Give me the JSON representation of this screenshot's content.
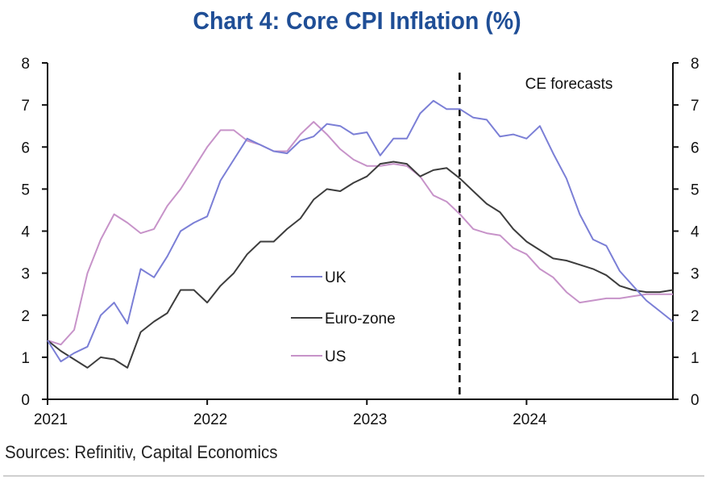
{
  "chart_data": {
    "type": "line",
    "title": "Chart 4: Core CPI Inflation (%)",
    "xlabel": "",
    "ylabel": "",
    "ylim": [
      0,
      8
    ],
    "yticks": [
      0,
      1,
      2,
      3,
      4,
      5,
      6,
      7,
      8
    ],
    "y_right_ticks": [
      0,
      1,
      2,
      3,
      4,
      5,
      6,
      7,
      8
    ],
    "x_tick_labels": [
      "2021",
      "2022",
      "2023",
      "2024"
    ],
    "x_start": "2021-01",
    "x_end": "2024-12",
    "frequency": "monthly",
    "grid": false,
    "legend_position": "center",
    "forecast_marker": {
      "month_index": 31,
      "label": "CE forecasts",
      "style": "dashed"
    },
    "series": [
      {
        "name": "UK",
        "color": "#7b7fd6",
        "values": [
          1.4,
          0.9,
          1.1,
          1.25,
          2.0,
          2.3,
          1.8,
          3.1,
          2.9,
          3.4,
          4.0,
          4.2,
          4.35,
          5.2,
          5.7,
          6.2,
          6.05,
          5.9,
          5.85,
          6.15,
          6.25,
          6.55,
          6.5,
          6.3,
          6.35,
          5.8,
          6.2,
          6.2,
          6.8,
          7.1,
          6.9,
          6.9,
          6.7,
          6.65,
          6.25,
          6.3,
          6.2,
          6.5,
          5.85,
          5.25,
          4.4,
          3.8,
          3.65,
          3.05,
          2.7,
          2.35,
          2.1,
          1.85
        ]
      },
      {
        "name": "Euro-zone",
        "color": "#3d3d3d",
        "values": [
          1.4,
          1.15,
          0.95,
          0.75,
          1.0,
          0.95,
          0.75,
          1.6,
          1.85,
          2.05,
          2.6,
          2.6,
          2.3,
          2.7,
          3.0,
          3.45,
          3.75,
          3.75,
          4.05,
          4.3,
          4.75,
          5.0,
          4.95,
          5.15,
          5.3,
          5.6,
          5.65,
          5.6,
          5.3,
          5.45,
          5.5,
          5.25,
          4.95,
          4.65,
          4.45,
          4.05,
          3.75,
          3.55,
          3.35,
          3.3,
          3.2,
          3.1,
          2.95,
          2.7,
          2.6,
          2.55,
          2.55,
          2.6
        ]
      },
      {
        "name": "US",
        "color": "#c793c9",
        "values": [
          1.4,
          1.3,
          1.65,
          3.0,
          3.8,
          4.4,
          4.2,
          3.95,
          4.05,
          4.6,
          5.0,
          5.5,
          6.0,
          6.4,
          6.4,
          6.15,
          6.05,
          5.9,
          5.9,
          6.3,
          6.6,
          6.3,
          5.95,
          5.7,
          5.55,
          5.55,
          5.6,
          5.55,
          5.3,
          4.85,
          4.7,
          4.4,
          4.05,
          3.95,
          3.9,
          3.6,
          3.45,
          3.1,
          2.9,
          2.55,
          2.3,
          2.35,
          2.4,
          2.4,
          2.45,
          2.5,
          2.5,
          2.5
        ]
      }
    ],
    "source": "Sources: Refinitiv, Capital Economics"
  },
  "colors": {
    "title": "#1f4e96",
    "axis": "#111111"
  }
}
